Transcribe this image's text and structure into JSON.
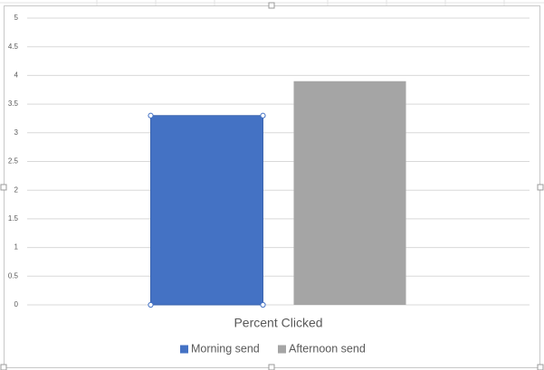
{
  "chart_data": {
    "type": "bar",
    "categories": [
      "Percent Clicked"
    ],
    "series": [
      {
        "name": "Morning send",
        "color": "#4472c4",
        "values": [
          3.3
        ]
      },
      {
        "name": "Afternoon send",
        "color": "#a5a5a5",
        "values": [
          3.9
        ]
      }
    ],
    "ylim": [
      0,
      5
    ],
    "yticks": [
      0,
      0.5,
      1,
      1.5,
      2,
      2.5,
      3,
      3.5,
      4,
      4.5,
      5
    ],
    "grid": true,
    "legend": "bottom"
  }
}
